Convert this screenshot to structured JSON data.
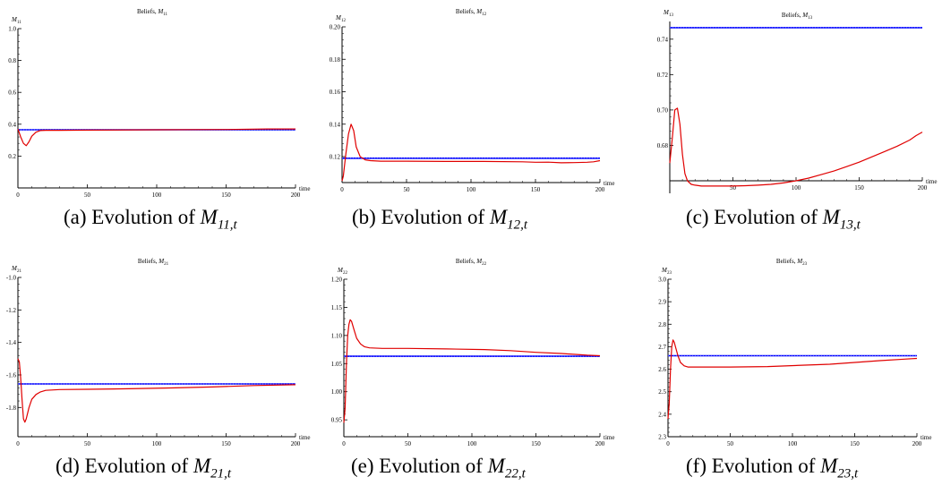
{
  "chart_data": [
    {
      "type": "line",
      "title": "Beliefs, M",
      "title_sub": "11",
      "ylabel": "M",
      "ylabel_sub": "11",
      "xlabel": "time",
      "xlim": [
        0,
        200
      ],
      "ylim": [
        0,
        1.0
      ],
      "x_axis_at": 0,
      "xticks": [
        0,
        50,
        100,
        150,
        200
      ],
      "yticks": [
        0.2,
        0.4,
        0.6,
        0.8,
        1.0
      ],
      "ytick_labels": [
        "0.2",
        "0.4",
        "0.6",
        "0.8",
        "1.0"
      ],
      "series": [
        {
          "color": "#0000ff",
          "x": [
            0,
            200
          ],
          "y": [
            0.365,
            0.365
          ]
        },
        {
          "color": "#e00000",
          "x": [
            0,
            2,
            4,
            6,
            8,
            10,
            13,
            16,
            20,
            30,
            50,
            100,
            150,
            180,
            200
          ],
          "y": [
            0.37,
            0.32,
            0.28,
            0.265,
            0.29,
            0.325,
            0.35,
            0.36,
            0.362,
            0.362,
            0.363,
            0.365,
            0.367,
            0.37,
            0.37
          ]
        }
      ],
      "caption_pre": "(a) Evolution of ",
      "caption_m": "M",
      "caption_sub": "11,t"
    },
    {
      "type": "line",
      "title": "Beliefs, M",
      "title_sub": "12",
      "ylabel": "M",
      "ylabel_sub": "12",
      "xlabel": "time",
      "xlim": [
        0,
        200
      ],
      "ylim": [
        0.104,
        0.2
      ],
      "x_axis_at": 0.104,
      "xticks": [
        0,
        50,
        100,
        150,
        200
      ],
      "yticks": [
        0.12,
        0.14,
        0.16,
        0.18,
        0.2
      ],
      "ytick_labels": [
        "0.12",
        "0.14",
        "0.16",
        "0.18",
        "0.20"
      ],
      "series": [
        {
          "color": "#0000ff",
          "x": [
            0,
            200
          ],
          "y": [
            0.119,
            0.119
          ]
        },
        {
          "color": "#e00000",
          "x": [
            0,
            1,
            3,
            5,
            7,
            9,
            11,
            14,
            18,
            22,
            30,
            50,
            80,
            110,
            140,
            150,
            160,
            170,
            180,
            190,
            195,
            200
          ],
          "y": [
            0.105,
            0.108,
            0.122,
            0.134,
            0.14,
            0.136,
            0.126,
            0.12,
            0.118,
            0.1175,
            0.1172,
            0.1172,
            0.117,
            0.117,
            0.1168,
            0.1165,
            0.1166,
            0.1162,
            0.1163,
            0.1165,
            0.1168,
            0.1175
          ]
        }
      ],
      "caption_pre": "(b) Evolution of ",
      "caption_m": "M",
      "caption_sub": "12,t"
    },
    {
      "type": "line",
      "title": "Beliefs, M",
      "title_sub": "13",
      "ylabel": "M",
      "ylabel_sub": "13",
      "xlabel": "time",
      "xlim": [
        0,
        200
      ],
      "ylim": [
        0.66,
        0.75
      ],
      "x_axis_at": 0.66,
      "xticks": [
        50,
        100,
        150,
        200
      ],
      "yticks": [
        0.68,
        0.7,
        0.72,
        0.74
      ],
      "ytick_labels": [
        "0.68",
        "0.70",
        "0.72",
        "0.74"
      ],
      "series": [
        {
          "color": "#0000ff",
          "x": [
            0,
            200
          ],
          "y": [
            0.7465,
            0.7465
          ]
        },
        {
          "color": "#e00000",
          "x": [
            0,
            2,
            4,
            6,
            8,
            10,
            12,
            14,
            17,
            20,
            25,
            30,
            40,
            50,
            60,
            70,
            80,
            90,
            100,
            110,
            120,
            130,
            140,
            150,
            160,
            170,
            180,
            190,
            195,
            200
          ],
          "y": [
            0.67,
            0.684,
            0.7,
            0.701,
            0.692,
            0.675,
            0.664,
            0.66,
            0.658,
            0.6575,
            0.657,
            0.657,
            0.657,
            0.657,
            0.6572,
            0.6575,
            0.658,
            0.6588,
            0.66,
            0.6615,
            0.6635,
            0.6655,
            0.668,
            0.6705,
            0.6735,
            0.6765,
            0.6795,
            0.683,
            0.6855,
            0.6875
          ]
        }
      ],
      "caption_pre": "(c) Evolution of ",
      "caption_m": "M",
      "caption_sub": "13,t"
    },
    {
      "type": "line",
      "title": "Beliefs, M",
      "title_sub": "21",
      "ylabel": "M",
      "ylabel_sub": "21",
      "xlabel": "time",
      "xlim": [
        0,
        200
      ],
      "ylim": [
        -1.98,
        -1.0
      ],
      "x_axis_at": -1.98,
      "xticks": [
        0,
        50,
        100,
        150,
        200
      ],
      "yticks": [
        -1.8,
        -1.6,
        -1.4,
        -1.2,
        -1.0
      ],
      "ytick_labels": [
        "-1.8",
        "-1.6",
        "-1.4",
        "-1.2",
        "-1.0"
      ],
      "series": [
        {
          "color": "#0000ff",
          "x": [
            0,
            200
          ],
          "y": [
            -1.655,
            -1.655
          ]
        },
        {
          "color": "#e00000",
          "x": [
            0,
            1,
            2,
            3,
            4,
            5,
            6,
            8,
            10,
            13,
            16,
            20,
            30,
            50,
            80,
            110,
            140,
            170,
            200
          ],
          "y": [
            -1.5,
            -1.52,
            -1.62,
            -1.75,
            -1.87,
            -1.89,
            -1.87,
            -1.8,
            -1.75,
            -1.72,
            -1.705,
            -1.695,
            -1.69,
            -1.688,
            -1.685,
            -1.68,
            -1.674,
            -1.665,
            -1.66
          ]
        }
      ],
      "caption_pre": "(d) Evolution of ",
      "caption_m": "M",
      "caption_sub": "21,t"
    },
    {
      "type": "line",
      "title": "Beliefs, M",
      "title_sub": "22",
      "ylabel": "M",
      "ylabel_sub": "22",
      "xlabel": "time",
      "xlim": [
        0,
        200
      ],
      "ylim": [
        0.92,
        1.2
      ],
      "x_axis_at": 0.92,
      "xticks": [
        0,
        50,
        100,
        150,
        200
      ],
      "yticks": [
        0.95,
        1.0,
        1.05,
        1.1,
        1.15,
        1.2
      ],
      "ytick_labels": [
        "0.95",
        "1.00",
        "1.05",
        "1.10",
        "1.15",
        "1.20"
      ],
      "series": [
        {
          "color": "#0000ff",
          "x": [
            0,
            200
          ],
          "y": [
            1.063,
            1.063
          ]
        },
        {
          "color": "#e00000",
          "x": [
            0,
            1,
            2,
            3,
            4,
            5,
            6,
            8,
            10,
            13,
            16,
            20,
            30,
            50,
            80,
            110,
            130,
            150,
            170,
            190,
            200
          ],
          "y": [
            0.945,
            0.97,
            1.05,
            1.1,
            1.12,
            1.128,
            1.125,
            1.11,
            1.095,
            1.085,
            1.08,
            1.078,
            1.077,
            1.077,
            1.076,
            1.075,
            1.073,
            1.07,
            1.068,
            1.065,
            1.064
          ]
        }
      ],
      "caption_pre": "(e) Evolution of ",
      "caption_m": "M",
      "caption_sub": "22,t"
    },
    {
      "type": "line",
      "title": "Beliefs, M",
      "title_sub": "23",
      "ylabel": "M",
      "ylabel_sub": "23",
      "xlabel": "time",
      "xlim": [
        0,
        200
      ],
      "ylim": [
        2.3,
        3.0
      ],
      "x_axis_at": 2.3,
      "xticks": [
        0,
        50,
        100,
        150,
        200
      ],
      "yticks": [
        2.3,
        2.4,
        2.5,
        2.6,
        2.7,
        2.8,
        2.9,
        3.0
      ],
      "ytick_labels": [
        "2.3",
        "2.4",
        "2.5",
        "2.6",
        "2.7",
        "2.8",
        "2.9",
        "3.0"
      ],
      "series": [
        {
          "color": "#0000ff",
          "x": [
            0,
            200
          ],
          "y": [
            2.66,
            2.66
          ]
        },
        {
          "color": "#e00000",
          "x": [
            0,
            1,
            2,
            3,
            4,
            5,
            6,
            8,
            10,
            13,
            16,
            20,
            30,
            50,
            80,
            110,
            130,
            150,
            170,
            190,
            200
          ],
          "y": [
            2.38,
            2.45,
            2.6,
            2.7,
            2.73,
            2.72,
            2.7,
            2.66,
            2.63,
            2.615,
            2.61,
            2.61,
            2.61,
            2.61,
            2.612,
            2.618,
            2.622,
            2.63,
            2.638,
            2.645,
            2.648
          ]
        }
      ],
      "caption_pre": "(f) Evolution of ",
      "caption_m": "M",
      "caption_sub": "23,t"
    }
  ]
}
